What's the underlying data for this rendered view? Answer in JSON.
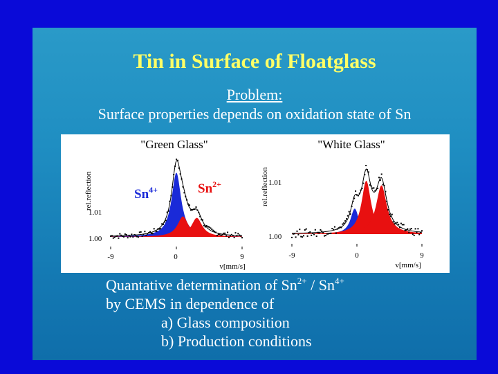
{
  "slide": {
    "title": "Tin in Surface of Floatglass",
    "problem_heading": "Problem:",
    "problem_text": "Surface properties depends on oxidation state of Sn",
    "bottom": {
      "line1_prefix": "Quantative determination of Sn",
      "line1_sup1": "2+",
      "line1_mid": " / Sn",
      "line1_sup2": "4+",
      "line2": "by CEMS in dependence of",
      "item_a": "a)  Glass composition",
      "item_b": "b)  Production conditions"
    }
  },
  "chart_data": [
    {
      "type": "line",
      "title": "\"Green Glass\"",
      "ylabel": "rel.reflection",
      "xlabel": "v[mm/s]",
      "x_ticks": [
        "-9",
        "0",
        "9"
      ],
      "y_ticks": [
        "1.00",
        "1.01"
      ],
      "xlim": [
        -9,
        9
      ],
      "ylim": [
        0.998,
        1.028
      ],
      "series": [
        {
          "name": "Sn4+",
          "label_base": "Sn",
          "label_sup": "4+",
          "color": "#1a2ad8",
          "center": 0.0,
          "width": 0.8,
          "amplitude": 0.022
        },
        {
          "name": "Sn2+",
          "label_base": "Sn",
          "label_sup": "2+",
          "color": "#e81010",
          "center": 0.9,
          "width": 0.9,
          "amplitude": 0.007
        },
        {
          "name": "Sn2+ b",
          "color": "#e81010",
          "center": 2.8,
          "width": 0.9,
          "amplitude": 0.0065
        }
      ]
    },
    {
      "type": "line",
      "title": "\"White Glass\"",
      "ylabel": "rel.reflection",
      "xlabel": "v[mm/s]",
      "x_ticks": [
        "-9",
        "0",
        "9"
      ],
      "y_ticks": [
        "1.00",
        "1.01"
      ],
      "xlim": [
        -9,
        9
      ],
      "ylim": [
        0.998,
        1.017
      ],
      "series": [
        {
          "name": "Sn4+",
          "color": "#1a2ad8",
          "center": -0.3,
          "width": 0.7,
          "amplitude": 0.0055
        },
        {
          "name": "Sn2+",
          "color": "#e81010",
          "center": 1.3,
          "width": 0.8,
          "amplitude": 0.0115
        },
        {
          "name": "Sn2+ b",
          "color": "#e81010",
          "center": 3.4,
          "width": 0.9,
          "amplitude": 0.0105
        }
      ]
    }
  ]
}
